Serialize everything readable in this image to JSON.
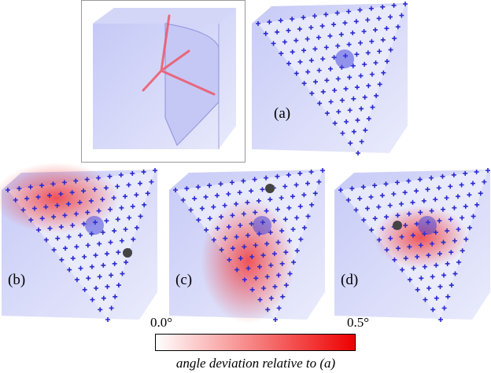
{
  "panels": [
    {
      "label": "(a)"
    },
    {
      "label": "(b)"
    },
    {
      "label": "(c)"
    },
    {
      "label": "(d)"
    }
  ],
  "colorbar": {
    "min_label": "0.0°",
    "max_label": "0.5°",
    "caption": "angle deviation relative to (a)"
  }
}
